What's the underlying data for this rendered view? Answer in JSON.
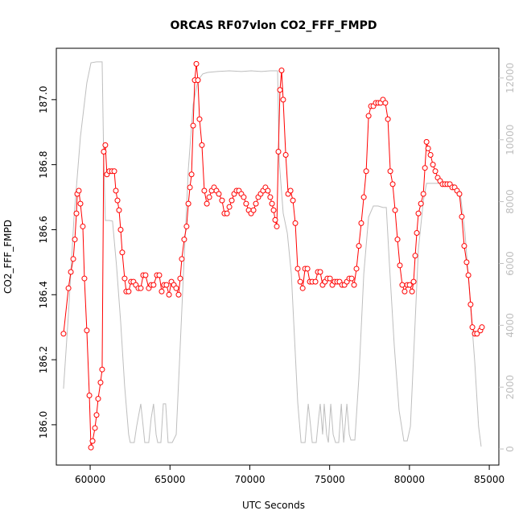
{
  "chart_data": {
    "type": "line",
    "title": "ORCAS RF07vlon CO2_FFF_FMPD",
    "xlabel": "UTC Seconds",
    "ylabel": "CO2_FFF_FMPD",
    "xlim": [
      57880,
      85600
    ],
    "xticks": [
      60000,
      65000,
      70000,
      75000,
      80000,
      85000
    ],
    "ylim": [
      185.876,
      187.158
    ],
    "yticks": [
      {
        "value": 186.0,
        "label": "186.0"
      },
      {
        "value": 186.2,
        "label": "186.2"
      },
      {
        "value": 186.4,
        "label": "186.4"
      },
      {
        "value": 186.6,
        "label": "186.6"
      },
      {
        "value": 186.8,
        "label": "186.8"
      },
      {
        "value": 187.0,
        "label": "187.0"
      }
    ],
    "y2lim": [
      -520,
      12960
    ],
    "y2ticks": [
      0,
      2000,
      4000,
      6000,
      8000,
      10000,
      12000
    ],
    "series": [
      {
        "color": "#bebebe",
        "axis": "y2",
        "markers": false,
        "x": [
          58330,
          58640,
          58990,
          59390,
          59790,
          60050,
          60400,
          60750,
          60850,
          60950,
          61200,
          61400,
          61650,
          61910,
          62160,
          62410,
          62510,
          62760,
          62910,
          63170,
          63320,
          63420,
          63670,
          63820,
          63970,
          64130,
          64230,
          64430,
          64580,
          64730,
          64880,
          65140,
          65390,
          65640,
          65890,
          66150,
          66450,
          66750,
          67050,
          67360,
          67960,
          68720,
          69470,
          70080,
          70730,
          71280,
          71740,
          71840,
          72090,
          72350,
          72600,
          72800,
          73000,
          73210,
          73460,
          73660,
          73810,
          73910,
          74160,
          74310,
          74410,
          74560,
          74660,
          74810,
          74920,
          75070,
          75220,
          75370,
          75570,
          75730,
          75880,
          76080,
          76230,
          76330,
          76580,
          76830,
          77140,
          77440,
          77740,
          78040,
          78340,
          78550,
          78750,
          79050,
          79350,
          79650,
          79860,
          80060,
          80310,
          80560,
          80870,
          81070,
          81370,
          81820,
          82320,
          82830,
          83180,
          83480,
          83830,
          84090,
          84330,
          84490
        ],
        "values": [
          1950,
          4370,
          7500,
          10100,
          11840,
          12490,
          12520,
          12520,
          9320,
          7390,
          7390,
          7370,
          5930,
          4110,
          2030,
          470,
          210,
          210,
          730,
          1460,
          730,
          210,
          210,
          990,
          1460,
          470,
          210,
          210,
          1460,
          1460,
          210,
          210,
          470,
          3330,
          6200,
          9060,
          11140,
          11920,
          12130,
          12180,
          12210,
          12230,
          12210,
          12230,
          12210,
          12230,
          12230,
          9320,
          7630,
          6980,
          5670,
          3590,
          1510,
          210,
          210,
          1460,
          730,
          210,
          210,
          990,
          1460,
          470,
          1460,
          470,
          210,
          1460,
          470,
          210,
          210,
          1460,
          210,
          1460,
          470,
          290,
          290,
          2290,
          5670,
          7500,
          7860,
          7860,
          7810,
          7810,
          5930,
          3330,
          1250,
          260,
          260,
          730,
          3590,
          6460,
          8020,
          8590,
          8590,
          8590,
          8590,
          8540,
          8280,
          6980,
          4630,
          2810,
          730,
          80
        ]
      },
      {
        "color": "#ff0000",
        "axis": "y",
        "markers": true,
        "x": [
          58330,
          58640,
          58790,
          58940,
          59040,
          59140,
          59190,
          59290,
          59390,
          59540,
          59640,
          59790,
          59950,
          60050,
          60150,
          60300,
          60400,
          60500,
          60650,
          60750,
          60850,
          60950,
          61050,
          61200,
          61360,
          61510,
          61610,
          61710,
          61810,
          61910,
          62010,
          62160,
          62260,
          62410,
          62560,
          62710,
          62860,
          63020,
          63170,
          63320,
          63470,
          63670,
          63820,
          63970,
          64180,
          64330,
          64480,
          64630,
          64780,
          64940,
          65090,
          65240,
          65390,
          65540,
          65640,
          65740,
          65890,
          66040,
          66150,
          66250,
          66350,
          66450,
          66550,
          66650,
          66750,
          66850,
          67000,
          67150,
          67310,
          67460,
          67610,
          67760,
          67910,
          68060,
          68260,
          68410,
          68570,
          68720,
          68870,
          69020,
          69170,
          69320,
          69470,
          69620,
          69770,
          69930,
          70080,
          70230,
          70380,
          70530,
          70680,
          70830,
          70980,
          71130,
          71280,
          71390,
          71490,
          71590,
          71690,
          71790,
          71890,
          71990,
          72090,
          72250,
          72400,
          72550,
          72700,
          72850,
          73000,
          73160,
          73310,
          73460,
          73610,
          73760,
          73910,
          74110,
          74260,
          74410,
          74560,
          74710,
          74860,
          75020,
          75170,
          75320,
          75470,
          75620,
          75780,
          75930,
          76080,
          76230,
          76380,
          76530,
          76680,
          76830,
          76980,
          77140,
          77290,
          77440,
          77590,
          77740,
          77890,
          78040,
          78190,
          78340,
          78490,
          78650,
          78800,
          78950,
          79100,
          79250,
          79400,
          79550,
          79700,
          79860,
          80010,
          80160,
          80260,
          80360,
          80460,
          80560,
          80720,
          80870,
          80970,
          81070,
          81170,
          81320,
          81470,
          81620,
          81770,
          81920,
          82070,
          82220,
          82370,
          82530,
          82680,
          82830,
          82980,
          83130,
          83280,
          83430,
          83580,
          83690,
          83830,
          83940,
          84090,
          84230,
          84440,
          84540
        ],
        "values": [
          186.28,
          186.42,
          186.47,
          186.51,
          186.57,
          186.65,
          186.71,
          186.72,
          186.68,
          186.61,
          186.45,
          186.29,
          186.09,
          185.93,
          185.95,
          185.99,
          186.03,
          186.08,
          186.13,
          186.17,
          186.84,
          186.86,
          186.77,
          186.78,
          186.78,
          186.78,
          186.72,
          186.69,
          186.66,
          186.6,
          186.53,
          186.45,
          186.41,
          186.41,
          186.44,
          186.44,
          186.43,
          186.42,
          186.42,
          186.46,
          186.46,
          186.42,
          186.43,
          186.43,
          186.46,
          186.46,
          186.41,
          186.43,
          186.43,
          186.4,
          186.44,
          186.43,
          186.42,
          186.4,
          186.45,
          186.51,
          186.57,
          186.61,
          186.68,
          186.73,
          186.77,
          186.92,
          187.06,
          187.11,
          187.06,
          186.94,
          186.86,
          186.72,
          186.68,
          186.7,
          186.72,
          186.73,
          186.72,
          186.71,
          186.69,
          186.65,
          186.65,
          186.67,
          186.69,
          186.71,
          186.72,
          186.72,
          186.71,
          186.7,
          186.68,
          186.66,
          186.65,
          186.66,
          186.68,
          186.7,
          186.71,
          186.72,
          186.73,
          186.72,
          186.7,
          186.68,
          186.66,
          186.63,
          186.61,
          186.84,
          187.03,
          187.09,
          187.0,
          186.83,
          186.71,
          186.72,
          186.69,
          186.62,
          186.48,
          186.44,
          186.42,
          186.48,
          186.48,
          186.44,
          186.44,
          186.44,
          186.47,
          186.47,
          186.43,
          186.44,
          186.45,
          186.45,
          186.43,
          186.44,
          186.44,
          186.44,
          186.43,
          186.43,
          186.44,
          186.45,
          186.45,
          186.43,
          186.48,
          186.55,
          186.62,
          186.7,
          186.78,
          186.95,
          186.98,
          186.98,
          186.99,
          186.99,
          186.99,
          187.0,
          186.99,
          186.94,
          186.78,
          186.74,
          186.66,
          186.57,
          186.49,
          186.43,
          186.41,
          186.43,
          186.43,
          186.41,
          186.44,
          186.52,
          186.59,
          186.65,
          186.68,
          186.71,
          186.79,
          186.87,
          186.85,
          186.83,
          186.8,
          186.78,
          186.76,
          186.75,
          186.74,
          186.74,
          186.74,
          186.74,
          186.73,
          186.73,
          186.72,
          186.71,
          186.64,
          186.55,
          186.5,
          186.46,
          186.37,
          186.3,
          186.28,
          186.28,
          186.29,
          186.3
        ]
      }
    ]
  }
}
